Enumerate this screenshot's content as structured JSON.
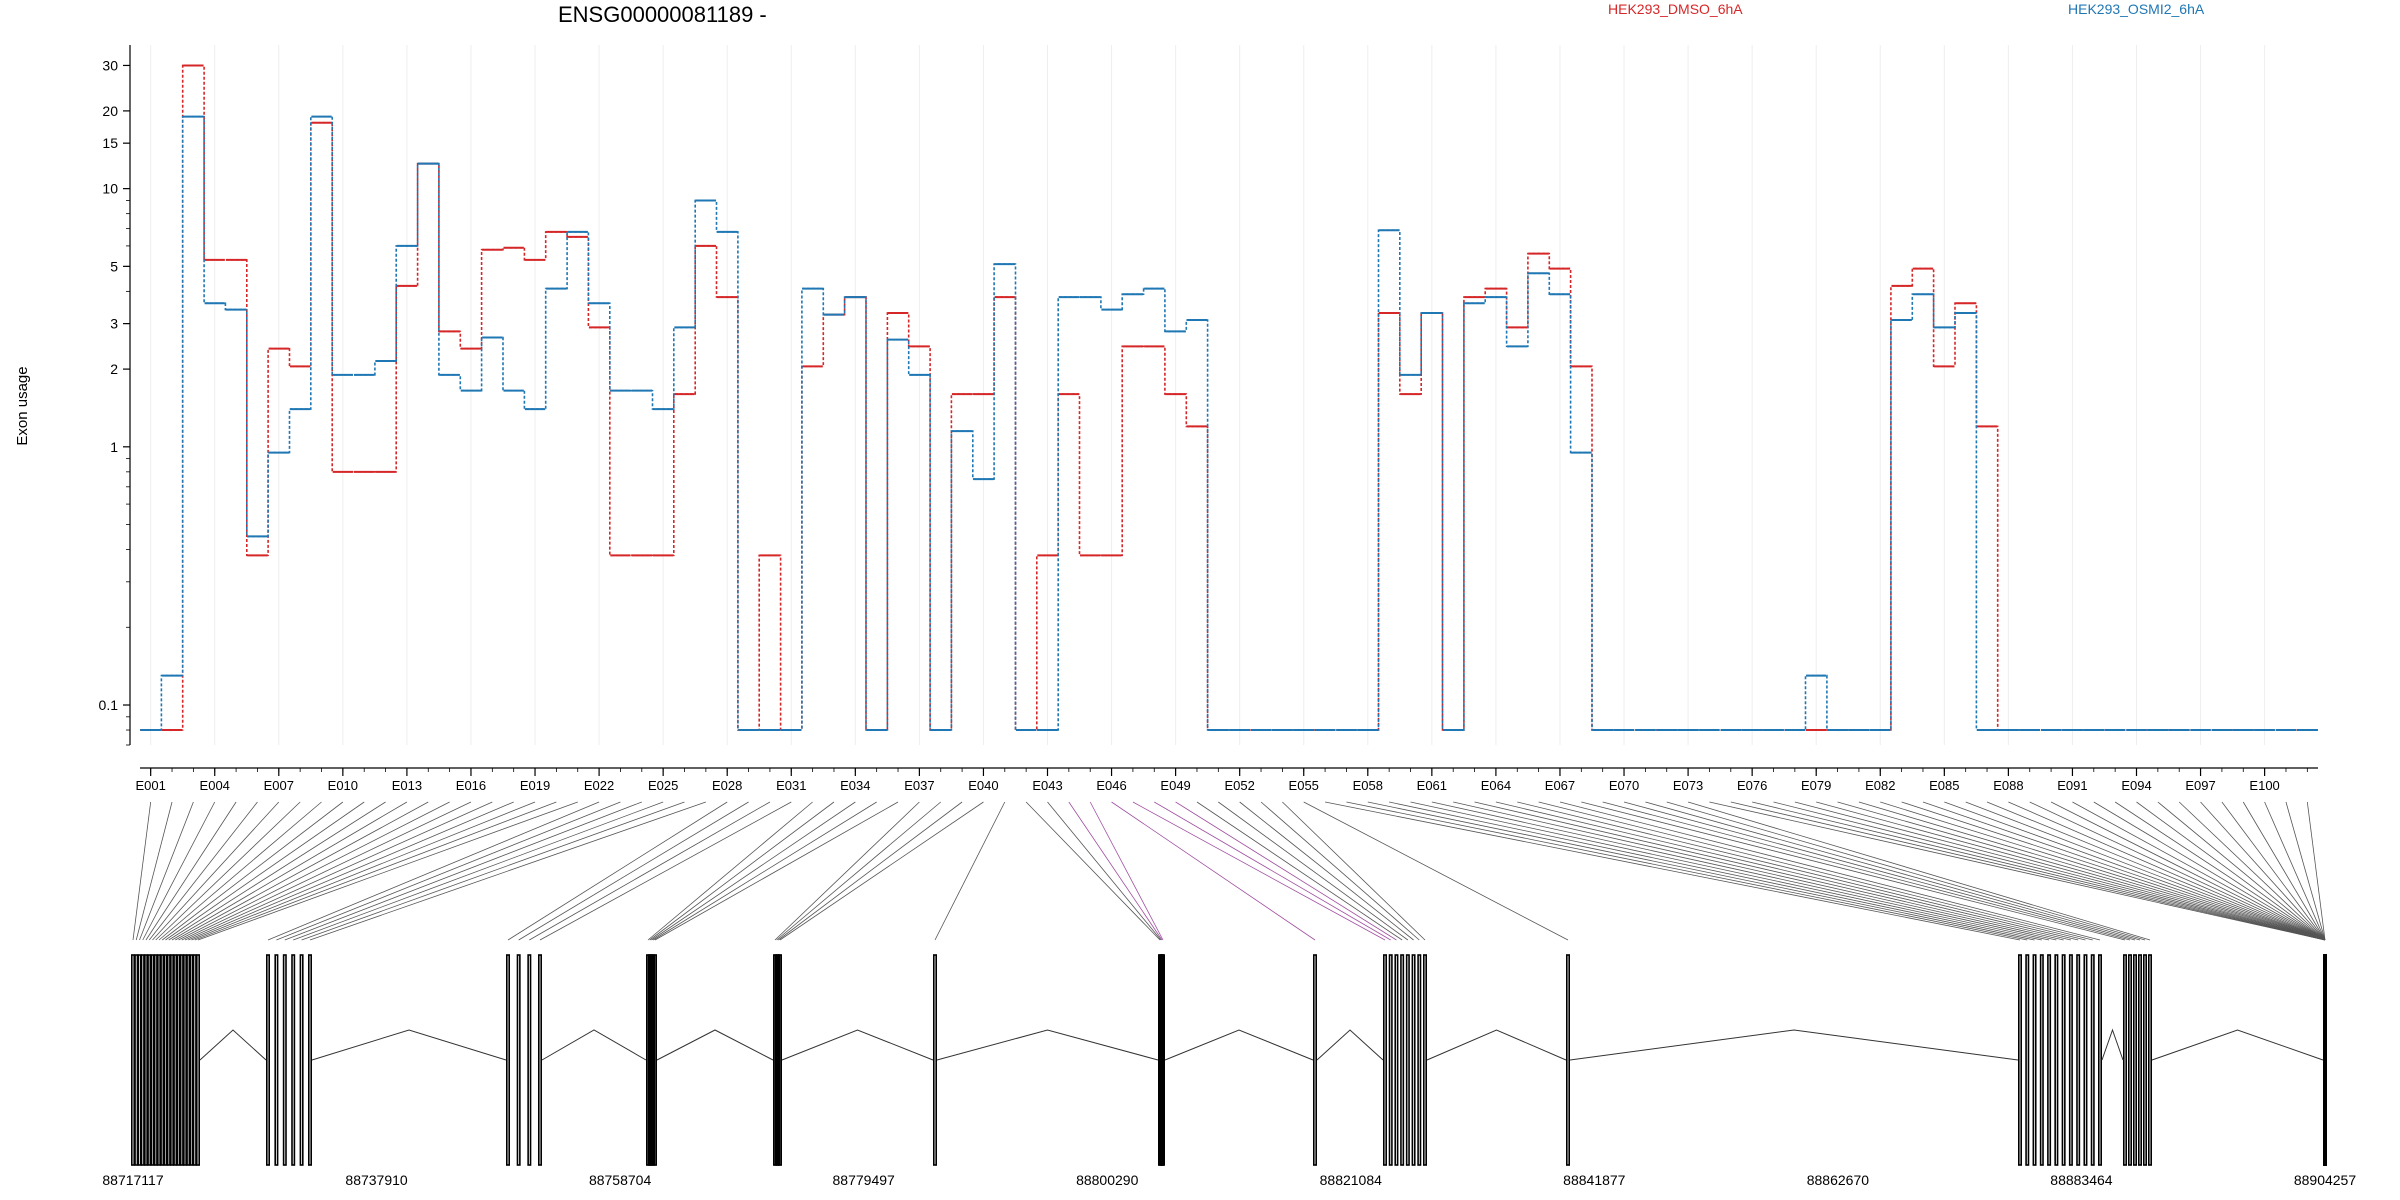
{
  "chart_data": {
    "type": "line",
    "title": "ENSG00000081189 -",
    "ylabel": "Exon usage",
    "xlabel": "",
    "y_scale": "log",
    "ylim": [
      0.07,
      36
    ],
    "y_ticks": [
      0.1,
      1,
      2,
      3,
      5,
      10,
      15,
      20,
      30
    ],
    "y_tick_labels": [
      "0.1",
      "1",
      "2",
      "3",
      "5",
      "10",
      "15",
      "20",
      "30"
    ],
    "grid": true,
    "legend_position": "top",
    "n_exons": 102,
    "floor_value": 0.08,
    "exon_tick_labels": [
      {
        "i": 1,
        "label": "E001"
      },
      {
        "i": 4,
        "label": "E004"
      },
      {
        "i": 7,
        "label": "E007"
      },
      {
        "i": 10,
        "label": "E010"
      },
      {
        "i": 13,
        "label": "E013"
      },
      {
        "i": 16,
        "label": "E016"
      },
      {
        "i": 19,
        "label": "E019"
      },
      {
        "i": 22,
        "label": "E022"
      },
      {
        "i": 25,
        "label": "E025"
      },
      {
        "i": 28,
        "label": "E028"
      },
      {
        "i": 31,
        "label": "E031"
      },
      {
        "i": 34,
        "label": "E034"
      },
      {
        "i": 37,
        "label": "E037"
      },
      {
        "i": 40,
        "label": "E040"
      },
      {
        "i": 43,
        "label": "E043"
      },
      {
        "i": 46,
        "label": "E046"
      },
      {
        "i": 49,
        "label": "E049"
      },
      {
        "i": 52,
        "label": "E052"
      },
      {
        "i": 55,
        "label": "E055"
      },
      {
        "i": 58,
        "label": "E058"
      },
      {
        "i": 61,
        "label": "E061"
      },
      {
        "i": 64,
        "label": "E064"
      },
      {
        "i": 67,
        "label": "E067"
      },
      {
        "i": 70,
        "label": "E070"
      },
      {
        "i": 73,
        "label": "E073"
      },
      {
        "i": 76,
        "label": "E076"
      },
      {
        "i": 79,
        "label": "E079"
      },
      {
        "i": 82,
        "label": "E082"
      },
      {
        "i": 85,
        "label": "E085"
      },
      {
        "i": 88,
        "label": "E088"
      },
      {
        "i": 91,
        "label": "E091"
      },
      {
        "i": 94,
        "label": "E094"
      },
      {
        "i": 97,
        "label": "E097"
      },
      {
        "i": 100,
        "label": "E100"
      }
    ],
    "series": [
      {
        "name": "HEK293_DMSO_6hA",
        "color": "#d62728",
        "values": [
          0.08,
          0.08,
          30,
          5.3,
          5.3,
          0.38,
          2.4,
          2.05,
          18,
          0.8,
          0.8,
          0.8,
          4.2,
          12.5,
          2.8,
          2.4,
          5.8,
          5.9,
          5.3,
          6.8,
          6.5,
          2.9,
          0.38,
          0.38,
          0.38,
          1.6,
          6.0,
          3.8,
          0.08,
          0.38,
          0.08,
          2.05,
          3.25,
          3.8,
          0.08,
          3.3,
          2.45,
          0.08,
          1.6,
          1.6,
          3.8,
          0.08,
          0.38,
          1.6,
          0.38,
          0.38,
          2.45,
          2.45,
          1.6,
          1.2,
          0.08,
          0.08,
          0.08,
          0.08,
          0.08,
          0.08,
          0.08,
          0.08,
          3.3,
          1.6,
          3.3,
          0.08,
          3.8,
          4.1,
          2.9,
          5.6,
          4.9,
          2.05,
          0.08,
          0.08,
          0.08,
          0.08,
          0.08,
          0.08,
          0.08,
          0.08,
          0.08,
          0.08,
          0.08,
          0.08,
          0.08,
          0.08,
          4.2,
          4.9,
          2.05,
          3.6,
          1.2,
          0.08,
          0.08,
          0.08,
          0.08,
          0.08,
          0.08,
          0.08,
          0.08,
          0.08,
          0.08,
          0.08,
          0.08,
          0.08,
          0.08,
          0.08
        ]
      },
      {
        "name": "HEK293_OSMI2_6hA",
        "color": "#1f77b4",
        "values": [
          0.08,
          0.13,
          19,
          3.6,
          3.4,
          0.45,
          0.95,
          1.4,
          19,
          1.9,
          1.9,
          2.15,
          6.0,
          12.5,
          1.9,
          1.65,
          2.65,
          1.65,
          1.4,
          4.1,
          6.8,
          3.6,
          1.65,
          1.65,
          1.4,
          2.9,
          9.0,
          6.8,
          0.08,
          0.08,
          0.08,
          4.1,
          3.25,
          3.8,
          0.08,
          2.6,
          1.9,
          0.08,
          1.15,
          0.75,
          5.1,
          0.08,
          0.08,
          3.8,
          3.8,
          3.4,
          3.9,
          4.1,
          2.8,
          3.1,
          0.08,
          0.08,
          0.08,
          0.08,
          0.08,
          0.08,
          0.08,
          0.08,
          6.9,
          1.9,
          3.3,
          0.08,
          3.6,
          3.8,
          2.45,
          4.7,
          3.9,
          0.95,
          0.08,
          0.08,
          0.08,
          0.08,
          0.08,
          0.08,
          0.08,
          0.08,
          0.08,
          0.08,
          0.13,
          0.08,
          0.08,
          0.08,
          3.1,
          3.9,
          2.9,
          3.3,
          0.08,
          0.08,
          0.08,
          0.08,
          0.08,
          0.08,
          0.08,
          0.08,
          0.08,
          0.08,
          0.08,
          0.08,
          0.08,
          0.08,
          0.08,
          0.08
        ]
      }
    ],
    "genomic_coords": {
      "start": 88717117,
      "end": 88904257,
      "tick_labels": [
        "88717117",
        "88737910",
        "88758704",
        "88779497",
        "88800290",
        "88821084",
        "88841877",
        "88862670",
        "88883464",
        "88904257"
      ]
    }
  }
}
